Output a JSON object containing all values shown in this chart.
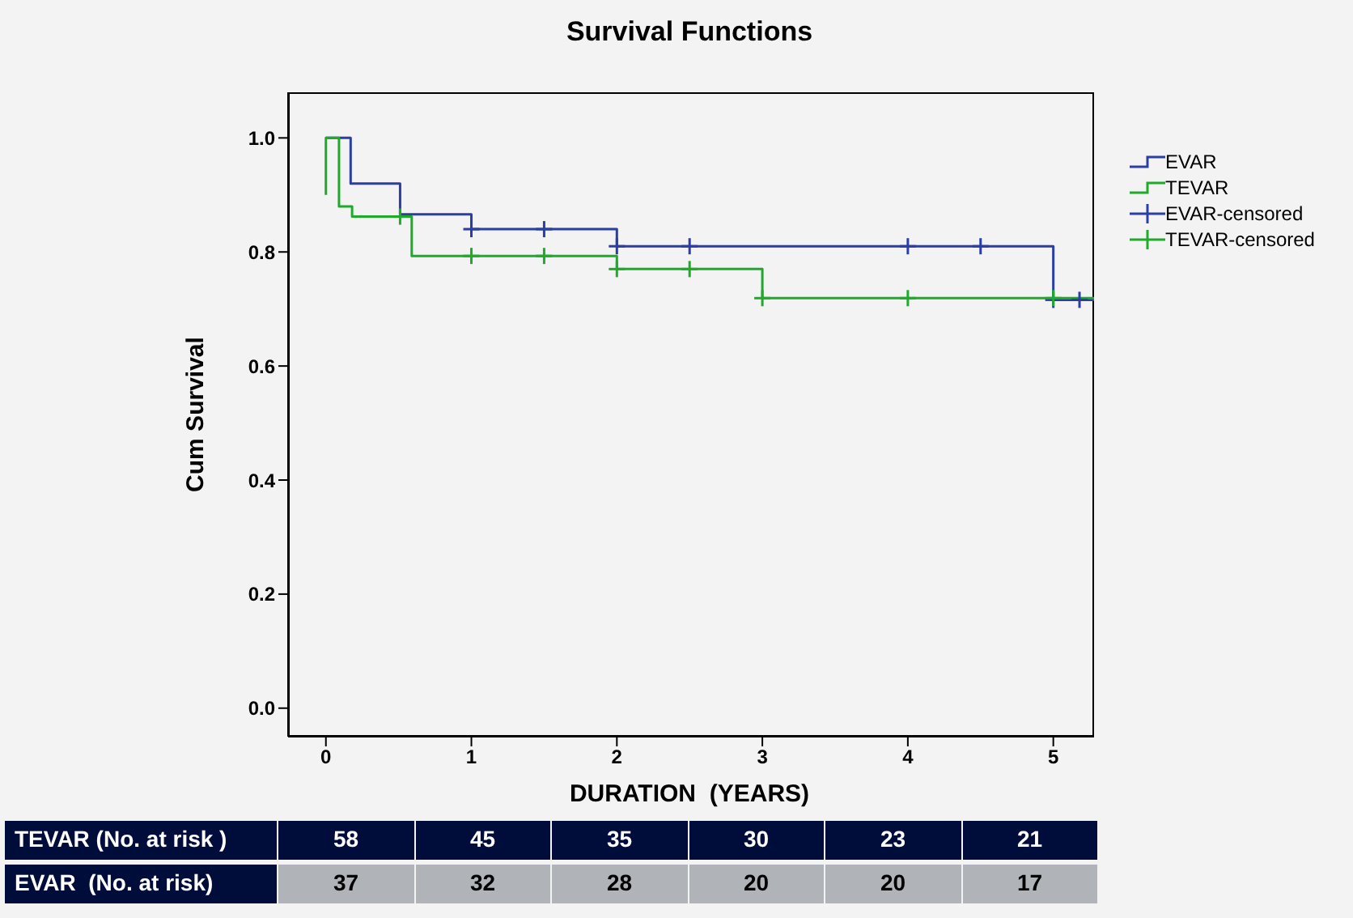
{
  "chart_data": {
    "type": "step",
    "title": "Survival Functions",
    "xlabel": "DURATION  (YEARS)",
    "ylabel": "Cum Survival",
    "xlim": [
      -0.26,
      5.28
    ],
    "ylim": [
      -0.05,
      1.08
    ],
    "xticks": [
      0,
      1,
      2,
      3,
      4,
      5
    ],
    "yticks": [
      {
        "value": 0,
        "label": "0.0"
      },
      {
        "value": 0.2,
        "label": "0.2"
      },
      {
        "value": 0.4,
        "label": "0.4"
      },
      {
        "value": 0.6,
        "label": "0.6"
      },
      {
        "value": 0.8,
        "label": "0.8"
      },
      {
        "value": 1,
        "label": "1.0"
      }
    ],
    "legend": "right",
    "series": [
      {
        "name": "EVAR",
        "type": "step",
        "color": "#2a3ea3",
        "x": [
          0,
          0.17,
          0.51,
          1,
          2,
          5,
          5.28
        ],
        "values": [
          1,
          0.92,
          0.866,
          0.84,
          0.81,
          0.716,
          0.716
        ]
      },
      {
        "name": "TEVAR",
        "type": "step",
        "color": "#1faa2a",
        "x": [
          0,
          0,
          0.09,
          0.18,
          0.59,
          2,
          3,
          5.28
        ],
        "values": [
          0.9,
          1,
          0.88,
          0.862,
          0.793,
          0.77,
          0.719,
          0.719
        ]
      },
      {
        "name": "EVAR-censored",
        "type": "scatter",
        "marker": "cross",
        "color": "#2a3ea3",
        "x": [
          1,
          1.5,
          2,
          2.5,
          4,
          4.5,
          5,
          5.18
        ],
        "values": [
          0.84,
          0.84,
          0.81,
          0.81,
          0.81,
          0.81,
          0.716,
          0.716
        ]
      },
      {
        "name": "TEVAR-censored",
        "type": "scatter",
        "marker": "cross",
        "color": "#1faa2a",
        "x": [
          0.51,
          1,
          1.5,
          2,
          2.5,
          3,
          4,
          5
        ],
        "values": [
          0.862,
          0.793,
          0.793,
          0.77,
          0.77,
          0.719,
          0.719,
          0.719
        ]
      }
    ],
    "annotations": [
      "TEVAR (No. at risk )",
      "58",
      "45",
      "35",
      "30",
      "23",
      "21",
      "EVAR  (No. at risk)",
      "37",
      "32",
      "28",
      "20",
      "20",
      "17"
    ]
  }
}
